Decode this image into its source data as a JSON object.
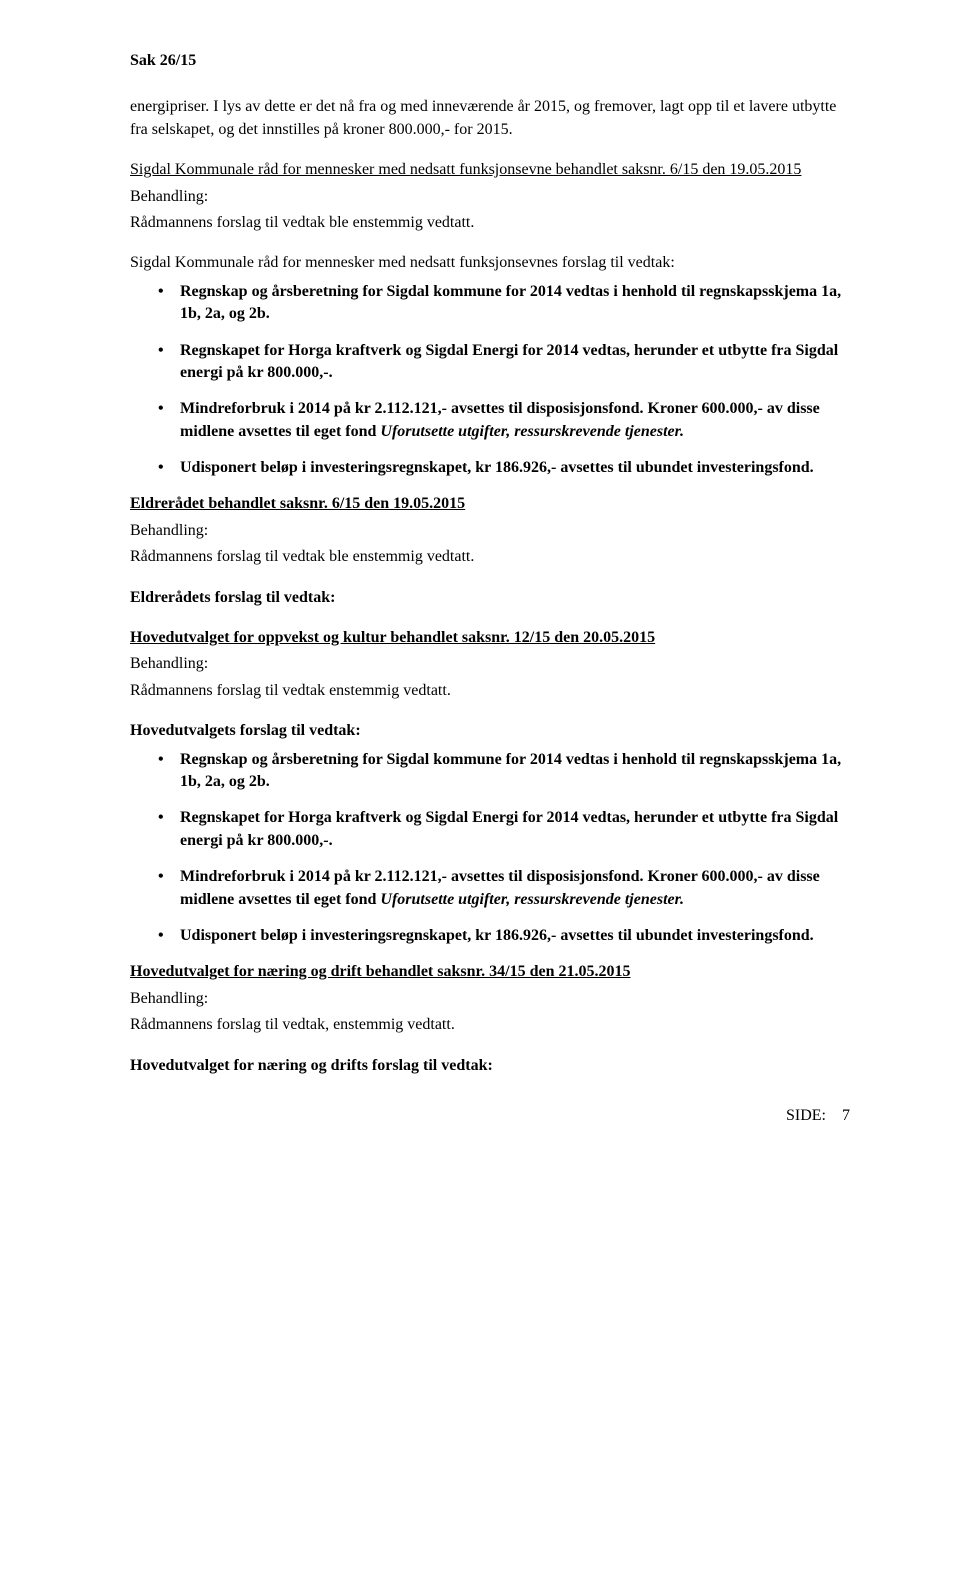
{
  "header": "Sak  26/15",
  "intro": "energipriser. I lys av dette er det nå fra og med inneværende år 2015, og fremover, lagt opp til et lavere utbytte fra selskapet, og det innstilles på kroner 800.000,- for 2015.",
  "section1": {
    "heading": "Sigdal Kommunale råd for mennesker med nedsatt funksjonsevne behandlet saksnr. 6/15 den 19.05.2015",
    "behandling_label": "Behandling:",
    "behandling_text": "Rådmannens forslag til vedtak ble enstemmig vedtatt.",
    "forslag_label": "Sigdal Kommunale råd for mennesker med nedsatt funksjonsevnes forslag til vedtak:"
  },
  "bullets1": {
    "b1": "Regnskap og årsberetning for Sigdal kommune for 2014 vedtas i henhold til regnskapsskjema 1a, 1b, 2a, og 2b.",
    "b2": "Regnskapet for Horga kraftverk og Sigdal Energi for 2014 vedtas, herunder et utbytte fra Sigdal energi på kr 800.000,-.",
    "b3a": "Mindreforbruk i 2014 på kr 2.112.121,- avsettes til disposisjonsfond. Kroner 600.000,- av disse midlene avsettes til eget fond ",
    "b3b": "Uforutsette utgifter, ressurskrevende tjenester.",
    "b4": "Udisponert beløp i investeringsregnskapet, kr 186.926,- avsettes til ubundet investeringsfond."
  },
  "section2": {
    "heading": "Eldrerådet behandlet saksnr. 6/15 den 19.05.2015",
    "behandling_label": "Behandling:",
    "behandling_text": "Rådmannens forslag til vedtak ble enstemmig vedtatt.",
    "forslag_label": "Eldrerådets forslag til vedtak:"
  },
  "section3": {
    "heading": "Hovedutvalget for oppvekst og kultur behandlet saksnr. 12/15 den 20.05.2015",
    "behandling_label": "Behandling:",
    "behandling_text": "Rådmannens forslag til vedtak enstemmig vedtatt.",
    "forslag_label": "Hovedutvalgets forslag til vedtak:"
  },
  "bullets2": {
    "b1": "Regnskap og årsberetning for Sigdal kommune for 2014 vedtas i henhold til regnskapsskjema 1a, 1b, 2a, og 2b.",
    "b2": "Regnskapet for Horga kraftverk og Sigdal Energi for 2014 vedtas, herunder et utbytte fra Sigdal energi på kr 800.000,-.",
    "b3a": "Mindreforbruk i 2014 på kr 2.112.121,- avsettes til disposisjonsfond. Kroner 600.000,- av disse midlene avsettes til eget fond ",
    "b3b": "Uforutsette utgifter, ressurskrevende tjenester.",
    "b4": "Udisponert beløp i investeringsregnskapet, kr 186.926,- avsettes til ubundet investeringsfond."
  },
  "section4": {
    "heading": "Hovedutvalget for næring og drift behandlet saksnr. 34/15 den 21.05.2015",
    "behandling_label": "Behandling:",
    "behandling_text": "Rådmannens forslag til vedtak, enstemmig vedtatt.",
    "forslag_label": "Hovedutvalget for næring og drifts forslag til vedtak:"
  },
  "footer": {
    "label": "SIDE:",
    "page": "7"
  }
}
